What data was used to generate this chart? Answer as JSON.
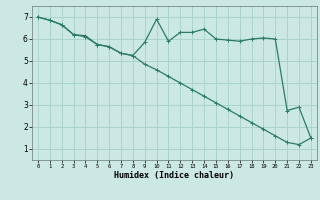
{
  "xlabel": "Humidex (Indice chaleur)",
  "bg_color": "#cce8e4",
  "grid_color": "#aad4cc",
  "line_color": "#2a7a6a",
  "xlim": [
    -0.5,
    23.5
  ],
  "ylim": [
    0.5,
    7.5
  ],
  "xticks": [
    0,
    1,
    2,
    3,
    4,
    5,
    6,
    7,
    8,
    9,
    10,
    11,
    12,
    13,
    14,
    15,
    16,
    17,
    18,
    19,
    20,
    21,
    22,
    23
  ],
  "yticks": [
    1,
    2,
    3,
    4,
    5,
    6,
    7
  ],
  "line1_x": [
    0,
    1,
    2,
    3,
    4,
    5,
    6,
    7,
    8,
    9,
    10,
    11,
    12,
    13,
    14,
    15,
    16,
    17,
    18,
    19,
    20,
    21,
    22,
    23
  ],
  "line1_y": [
    7.0,
    6.85,
    6.65,
    6.2,
    6.15,
    5.75,
    5.65,
    5.35,
    5.25,
    5.85,
    6.9,
    5.9,
    6.3,
    6.3,
    6.45,
    6.0,
    5.95,
    5.9,
    6.0,
    6.05,
    6.0,
    2.75,
    2.9,
    1.5
  ],
  "line2_x": [
    0,
    1,
    2,
    3,
    4,
    5,
    6,
    7,
    8,
    9,
    10,
    11,
    12,
    13,
    14,
    15,
    16,
    17,
    18,
    19,
    20,
    21,
    22,
    23
  ],
  "line2_y": [
    7.0,
    6.85,
    6.65,
    6.2,
    6.1,
    5.75,
    5.65,
    5.35,
    5.25,
    4.85,
    4.6,
    4.3,
    4.0,
    3.7,
    3.4,
    3.1,
    2.8,
    2.5,
    2.2,
    1.9,
    1.6,
    1.3,
    1.2,
    1.5
  ]
}
